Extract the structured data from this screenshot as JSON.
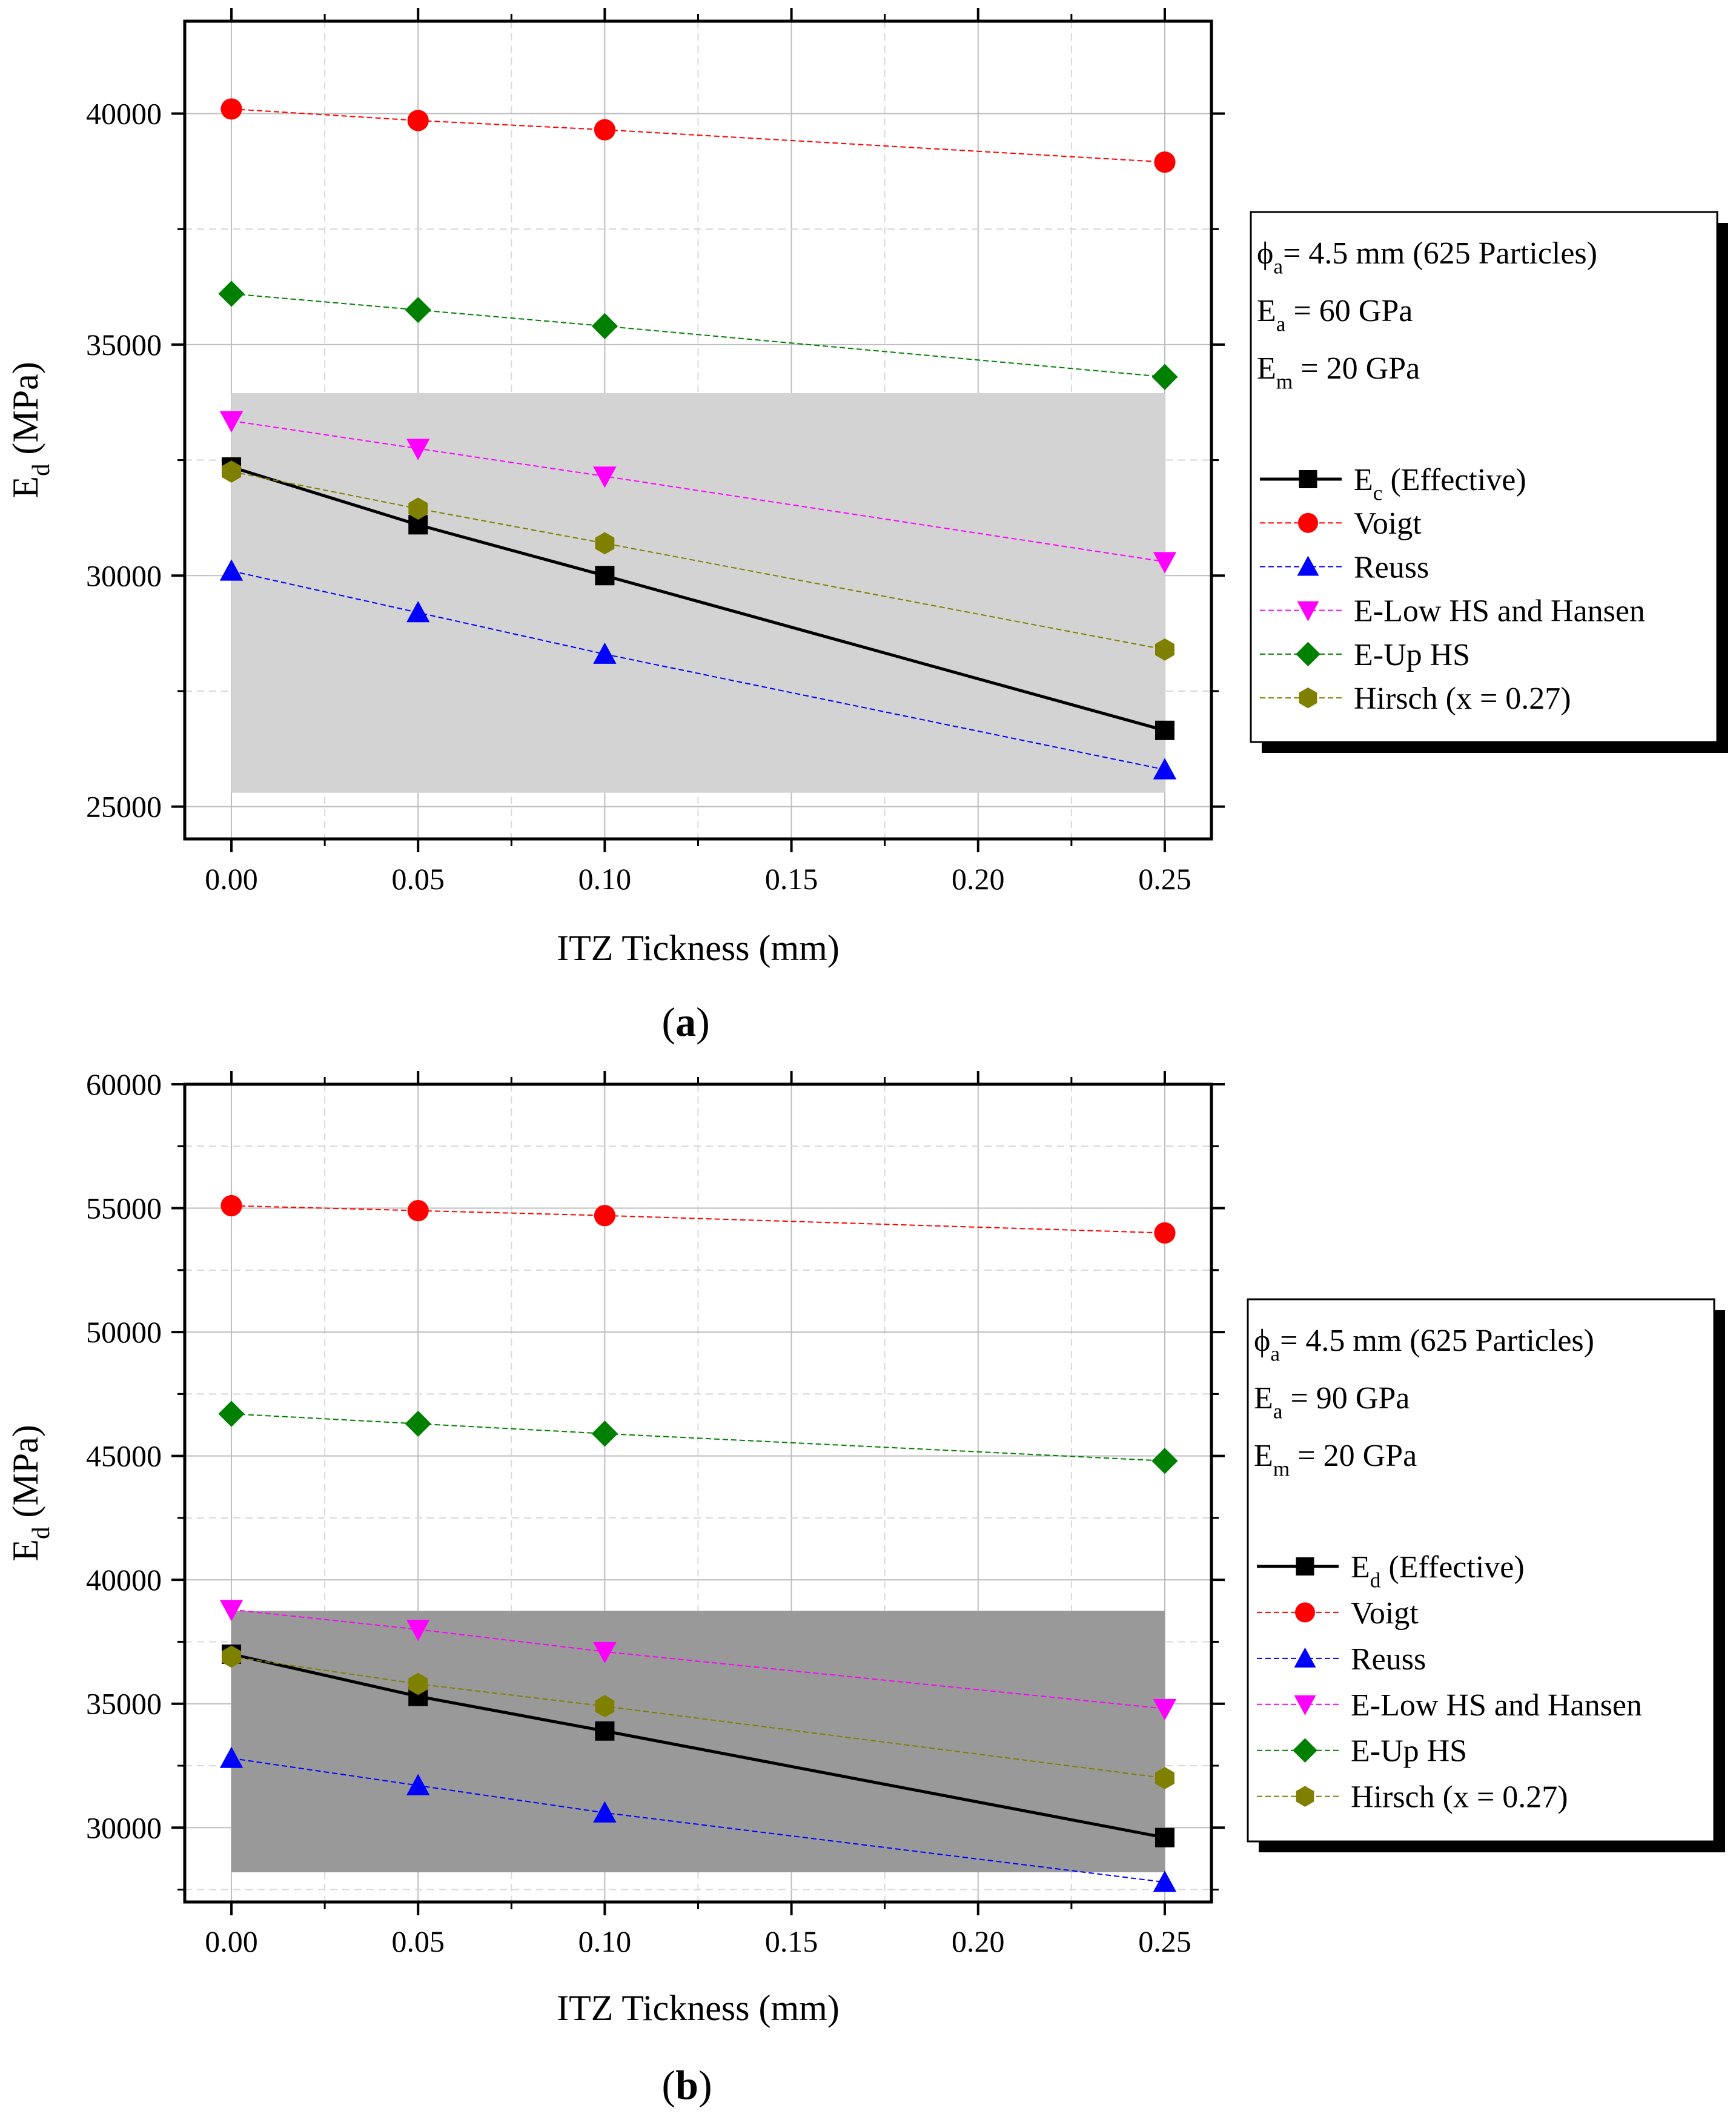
{
  "chart_data": [
    {
      "type": "line",
      "panel_label": "a",
      "xlabel": "ITZ Tickness (mm)",
      "ylabel": {
        "main": "E",
        "sub": "d",
        "rest": " (MPa)"
      },
      "xlim": [
        -0.0125,
        0.2625
      ],
      "ylim": [
        24300,
        42000
      ],
      "xticks": [
        0.0,
        0.05,
        0.1,
        0.15,
        0.2,
        0.25
      ],
      "xtick_labels": [
        "0.00",
        "0.05",
        "0.10",
        "0.15",
        "0.20",
        "0.25"
      ],
      "yticks": [
        25000,
        30000,
        35000,
        40000
      ],
      "ytick_labels": [
        "25000",
        "30000",
        "35000",
        "40000"
      ],
      "grid": true,
      "shaded_band": {
        "x": [
          0.0,
          0.25
        ],
        "y": [
          25300,
          33950
        ],
        "color": "#d3d3d3"
      },
      "x": [
        0.0,
        0.05,
        0.1,
        0.25
      ],
      "series": [
        {
          "name": {
            "main": "E",
            "sub": "c",
            "rest": " (Effective)"
          },
          "values": [
            32350,
            31100,
            30000,
            26650
          ],
          "marker": "square",
          "color": "#000000",
          "line": "solid"
        },
        {
          "name": {
            "main": "Voigt"
          },
          "values": [
            40100,
            39850,
            39650,
            38950
          ],
          "marker": "circle",
          "color": "#ff0000",
          "line": "dashed"
        },
        {
          "name": {
            "main": "Reuss"
          },
          "values": [
            30100,
            29200,
            28300,
            25800
          ],
          "marker": "triangle-up",
          "color": "#0000ff",
          "line": "dashed"
        },
        {
          "name": {
            "main": "E-Low HS and Hansen"
          },
          "values": [
            33350,
            32750,
            32150,
            30300
          ],
          "marker": "triangle-down",
          "color": "#ff00ff",
          "line": "dashed"
        },
        {
          "name": {
            "main": "E-Up HS"
          },
          "values": [
            36100,
            35750,
            35400,
            34300
          ],
          "marker": "diamond",
          "color": "#008000",
          "line": "dashed"
        },
        {
          "name": {
            "main": "Hirsch (x = 0.27)"
          },
          "values": [
            32250,
            31450,
            30700,
            28400
          ],
          "marker": "hexagon",
          "color": "#808000",
          "line": "dashed"
        }
      ],
      "annotations": [
        {
          "main": "ϕ",
          "sub": "a",
          "rest": "= 4.5 mm (625 Particles)"
        },
        {
          "main": "E",
          "sub": "a",
          "rest": " = 60 GPa"
        },
        {
          "main": "E",
          "sub": "m",
          "rest": " = 20 GPa"
        }
      ]
    },
    {
      "type": "line",
      "panel_label": "b",
      "xlabel": "ITZ Tickness (mm)",
      "ylabel": {
        "main": "E",
        "sub": "d",
        "rest": " (MPa)"
      },
      "xlim": [
        -0.0125,
        0.2625
      ],
      "ylim": [
        27000,
        60000
      ],
      "xticks": [
        0.0,
        0.05,
        0.1,
        0.15,
        0.2,
        0.25
      ],
      "xtick_labels": [
        "0.00",
        "0.05",
        "0.10",
        "0.15",
        "0.20",
        "0.25"
      ],
      "yticks": [
        30000,
        35000,
        40000,
        45000,
        50000,
        55000,
        60000
      ],
      "ytick_labels": [
        "30000",
        "35000",
        "40000",
        "45000",
        "50000",
        "55000",
        "60000"
      ],
      "grid": true,
      "shaded_band": {
        "x": [
          0.0,
          0.25
        ],
        "y": [
          28200,
          38750
        ],
        "color": "#999999"
      },
      "x": [
        0.0,
        0.05,
        0.1,
        0.25
      ],
      "series": [
        {
          "name": {
            "main": "E",
            "sub": "d",
            "rest": " (Effective)"
          },
          "values": [
            37000,
            35300,
            33900,
            29600
          ],
          "marker": "square",
          "color": "#000000",
          "line": "solid"
        },
        {
          "name": {
            "main": "Voigt"
          },
          "values": [
            55100,
            54900,
            54700,
            54000
          ],
          "marker": "circle",
          "color": "#ff0000",
          "line": "dashed"
        },
        {
          "name": {
            "main": "Reuss"
          },
          "values": [
            32800,
            31700,
            30600,
            27800
          ],
          "marker": "triangle-up",
          "color": "#0000ff",
          "line": "dashed"
        },
        {
          "name": {
            "main": "E-Low HS and Hansen"
          },
          "values": [
            38800,
            38000,
            37100,
            34800
          ],
          "marker": "triangle-down",
          "color": "#ff00ff",
          "line": "dashed"
        },
        {
          "name": {
            "main": "E-Up HS"
          },
          "values": [
            46700,
            46300,
            45900,
            44800
          ],
          "marker": "diamond",
          "color": "#008000",
          "line": "dashed"
        },
        {
          "name": {
            "main": "Hirsch (x = 0.27)"
          },
          "values": [
            36900,
            35800,
            34900,
            32000
          ],
          "marker": "hexagon",
          "color": "#808000",
          "line": "dashed"
        }
      ],
      "annotations": [
        {
          "main": "ϕ",
          "sub": "a",
          "rest": "= 4.5 mm (625 Particles)"
        },
        {
          "main": "E",
          "sub": "a",
          "rest": " = 90 GPa"
        },
        {
          "main": "E",
          "sub": "m",
          "rest": " = 20 GPa"
        }
      ]
    }
  ]
}
